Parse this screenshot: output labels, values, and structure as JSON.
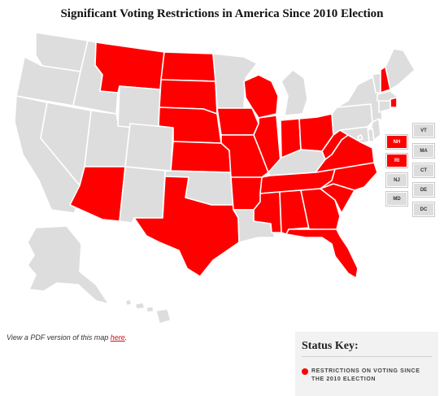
{
  "title": "Significant Voting Restrictions in America Since 2010 Election",
  "colors": {
    "restricted": "#ff0000",
    "unrestricted": "#dddddd",
    "border": "#ffffff"
  },
  "states": {
    "WA": "off",
    "OR": "off",
    "CA": "off",
    "ID": "off",
    "NV": "off",
    "UT": "off",
    "AZ": "on",
    "MT": "on",
    "WY": "off",
    "CO": "off",
    "NM": "off",
    "ND": "on",
    "SD": "on",
    "NE": "on",
    "KS": "on",
    "OK": "off",
    "TX": "on",
    "MN": "off",
    "IA": "on",
    "MO": "on",
    "AR": "on",
    "LA": "off",
    "WI": "on",
    "IL": "on",
    "MI": "off",
    "IN": "on",
    "OH": "on",
    "KY": "off",
    "TN": "on",
    "MS": "on",
    "AL": "on",
    "GA": "on",
    "FL": "on",
    "SC": "on",
    "NC": "on",
    "VA": "on",
    "WV": "on",
    "PA": "off",
    "NY": "off",
    "VT": "off",
    "NH": "on",
    "ME": "off",
    "MA": "off",
    "RI": "on",
    "CT": "off",
    "NJ": "off",
    "DE": "off",
    "MD": "off",
    "DC": "off",
    "AK": "off",
    "HI": "off"
  },
  "small_states": [
    {
      "label": "NH",
      "status": "on"
    },
    {
      "label": "RI",
      "status": "on"
    },
    {
      "label": "NJ",
      "status": "off"
    },
    {
      "label": "MD",
      "status": "off"
    },
    {
      "label": "VT",
      "status": "off"
    },
    {
      "label": "MA",
      "status": "off"
    },
    {
      "label": "CT",
      "status": "off"
    },
    {
      "label": "DE",
      "status": "off"
    },
    {
      "label": "DC",
      "status": "off"
    }
  ],
  "footer": {
    "prefix": "View a PDF version of this map ",
    "link": "here",
    "suffix": "."
  },
  "key": {
    "title": "Status Key:",
    "label": "RESTRICTIONS ON VOTING SINCE THE 2010 ELECTION"
  }
}
